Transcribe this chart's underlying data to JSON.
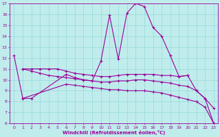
{
  "xlabel": "Windchill (Refroidissement éolien,°C)",
  "bg_color": "#c0ecec",
  "line_color": "#990099",
  "grid_color": "#96d8d8",
  "xlim": [
    -0.5,
    23.5
  ],
  "ylim": [
    6,
    17
  ],
  "xticks": [
    0,
    1,
    2,
    3,
    4,
    5,
    6,
    7,
    8,
    9,
    10,
    11,
    12,
    13,
    14,
    15,
    16,
    17,
    18,
    19,
    20,
    21,
    22,
    23
  ],
  "yticks": [
    6,
    7,
    8,
    9,
    10,
    11,
    12,
    13,
    14,
    15,
    16,
    17
  ],
  "series": [
    {
      "x": [
        0,
        1,
        2,
        6,
        7,
        8,
        9,
        10,
        11,
        12,
        13,
        14,
        15,
        16,
        17,
        18,
        19,
        20,
        21,
        22,
        23
      ],
      "y": [
        12.2,
        8.3,
        8.3,
        10.5,
        10.2,
        10.0,
        9.9,
        11.7,
        15.9,
        11.9,
        16.1,
        17.0,
        16.7,
        14.8,
        14.0,
        12.2,
        10.3,
        10.4,
        9.0,
        8.3,
        7.4
      ]
    },
    {
      "x": [
        1,
        2,
        3,
        4,
        5,
        6,
        7,
        8,
        9,
        10,
        11,
        12,
        13,
        14,
        15,
        16,
        17,
        18,
        19,
        20
      ],
      "y": [
        11.0,
        11.0,
        11.0,
        11.0,
        11.0,
        10.8,
        10.6,
        10.5,
        10.4,
        10.3,
        10.3,
        10.4,
        10.5,
        10.5,
        10.5,
        10.5,
        10.4,
        10.4,
        10.3,
        10.4
      ]
    },
    {
      "x": [
        1,
        2,
        3,
        4,
        5,
        6,
        7,
        8,
        9,
        10,
        11,
        12,
        13,
        14,
        15,
        16,
        17,
        18,
        19,
        20,
        21,
        22,
        23
      ],
      "y": [
        11.0,
        10.8,
        10.6,
        10.4,
        10.3,
        10.2,
        10.1,
        10.0,
        9.9,
        9.8,
        9.8,
        9.9,
        9.9,
        10.0,
        10.0,
        9.9,
        9.8,
        9.7,
        9.5,
        9.4,
        9.0,
        8.3,
        6.0
      ]
    },
    {
      "x": [
        1,
        6,
        7,
        8,
        9,
        10,
        11,
        12,
        13,
        14,
        15,
        16,
        17,
        18,
        19,
        20,
        21,
        22,
        23
      ],
      "y": [
        8.3,
        9.6,
        9.5,
        9.4,
        9.3,
        9.2,
        9.1,
        9.1,
        9.0,
        9.0,
        9.0,
        8.9,
        8.8,
        8.6,
        8.4,
        8.2,
        8.0,
        7.5,
        6.0
      ]
    }
  ]
}
